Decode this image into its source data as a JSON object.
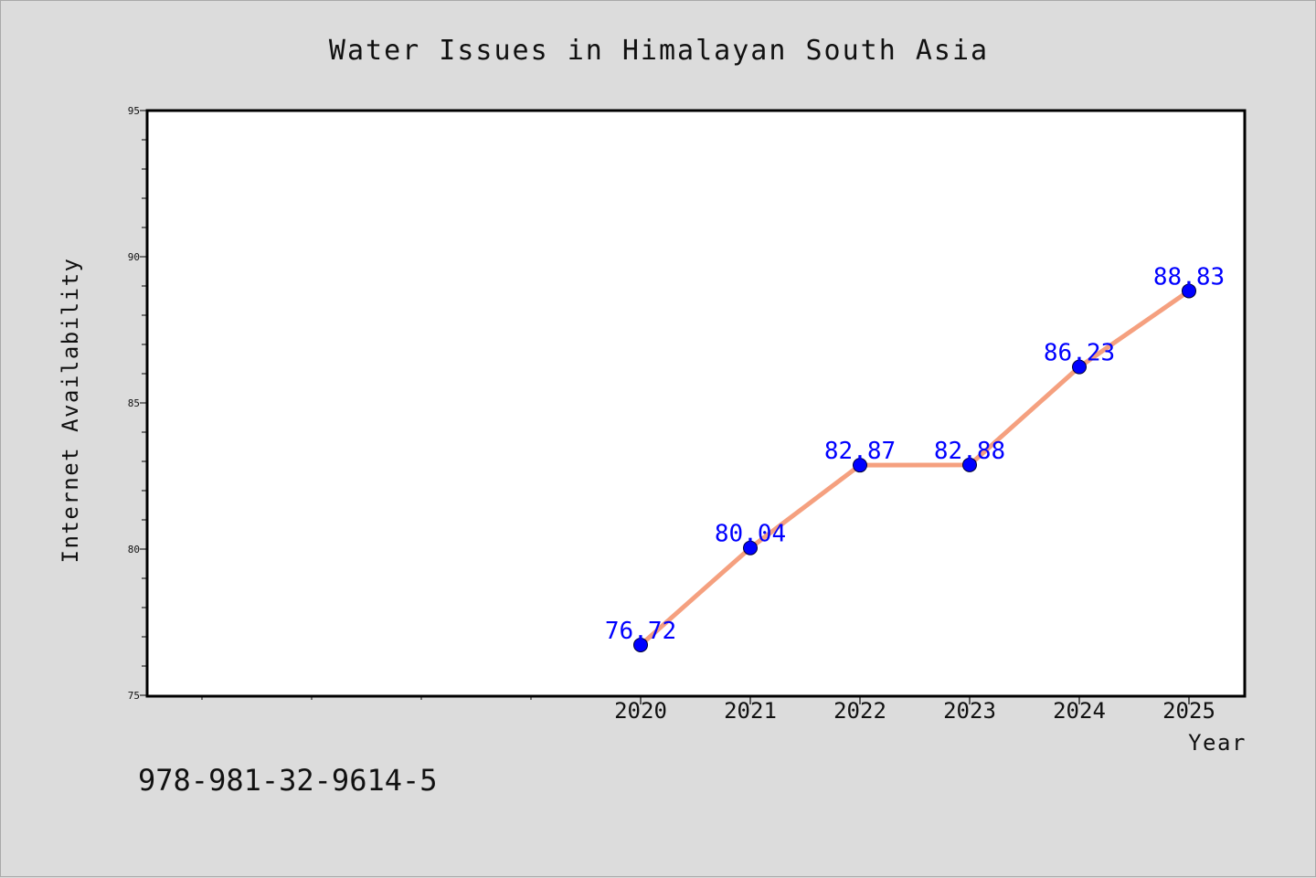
{
  "chart_data": {
    "type": "line",
    "title": "Water Issues in Himalayan South Asia",
    "xlabel": "Year",
    "ylabel": "Internet Availability",
    "x": [
      2020,
      2021,
      2022,
      2023,
      2024,
      2025
    ],
    "series": [
      {
        "values": [
          76.72,
          80.04,
          82.87,
          82.88,
          86.23,
          88.83
        ],
        "labels": [
          "76.72",
          "80.04",
          "82.87",
          "82.88",
          "86.23",
          "88.83"
        ]
      }
    ],
    "xlim": [
      2015.5,
      2025.5
    ],
    "ylim": [
      75,
      95
    ],
    "yticks": [
      75,
      80,
      85,
      90,
      95
    ],
    "grid": false,
    "line_color": "#f5a07f",
    "marker_color": "#0000ff",
    "label_color": "#0000ff"
  },
  "footer_text": "978-981-32-9614-5"
}
